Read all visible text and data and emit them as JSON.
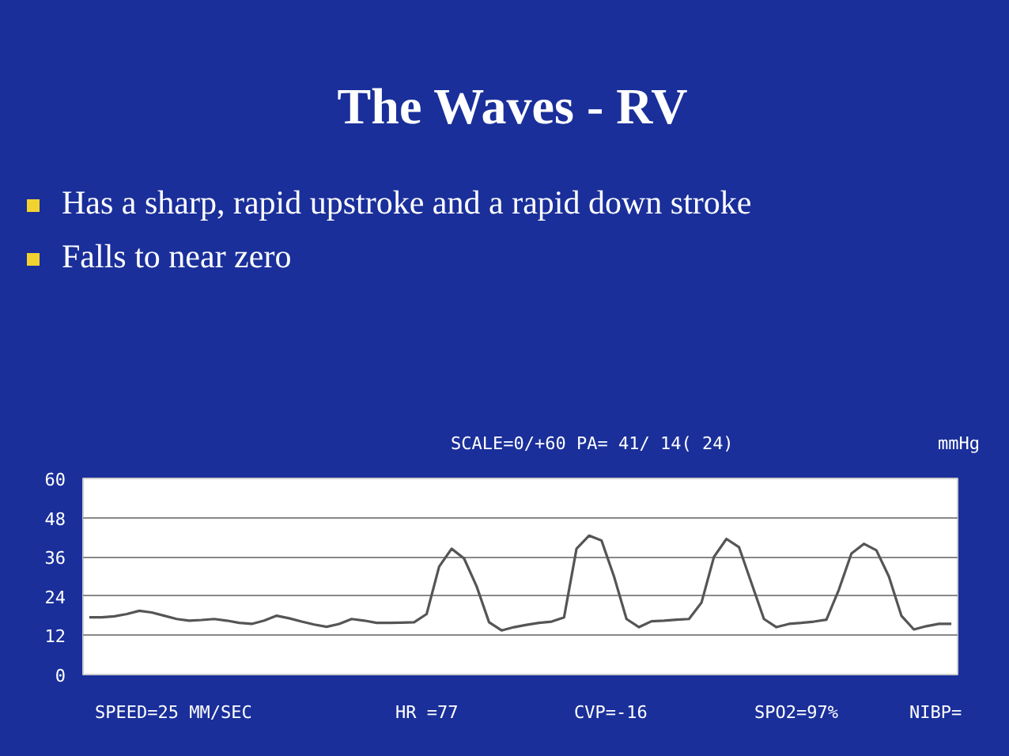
{
  "chart_data": {
    "type": "line",
    "title": "The Waves - RV",
    "annotations": [
      "Has a sharp, rapid upstroke and a rapid down stroke",
      "Falls to near zero",
      "SCALE=0/+60 PA= 41/ 14( 24)",
      "mmHg",
      "SPEED=25 MM/SEC",
      "HR =77",
      "CVP=-16",
      "SPO2=97%",
      "NIBP="
    ],
    "categories": [
      null,
      null,
      null,
      null,
      null,
      null,
      null,
      null,
      null,
      null,
      null,
      null,
      null,
      null,
      null,
      null,
      null,
      null,
      null,
      null,
      null,
      null,
      null,
      null,
      null,
      null,
      null,
      null,
      null,
      null,
      null,
      null,
      null,
      null,
      null,
      null,
      null,
      null,
      null,
      null,
      null,
      null,
      null,
      null,
      null,
      null,
      null,
      null,
      null,
      null,
      null,
      null,
      null,
      null,
      null,
      null,
      null,
      null,
      null,
      null,
      null,
      null,
      null,
      null,
      null,
      null,
      null,
      null,
      null,
      null
    ],
    "series": [
      {
        "color": "#555555",
        "values": [
          17.5,
          17.5,
          17.8,
          18.5,
          19.5,
          19,
          18,
          17,
          16.5,
          16.7,
          17,
          16.5,
          15.8,
          15.5,
          16.5,
          18,
          17.2,
          16.2,
          15.3,
          14.6,
          15.5,
          17,
          16.5,
          15.8,
          15.8,
          15.9,
          16,
          18.5,
          33,
          38.5,
          35.5,
          27,
          16,
          13.5,
          14.5,
          15.2,
          15.8,
          16.2,
          17.5,
          38.5,
          42.5,
          41,
          30,
          17,
          14.5,
          16.3,
          16.5,
          16.8,
          17,
          22,
          36,
          41.5,
          39,
          28,
          17,
          14.5,
          15.5,
          15.8,
          16.2,
          16.8,
          26,
          37,
          40,
          38,
          30,
          18,
          13.8,
          14.8,
          15.5,
          15.5
        ]
      }
    ],
    "ylim": [
      0,
      60
    ],
    "yticks": [
      0,
      12,
      24,
      36,
      48,
      60
    ],
    "grid": "y",
    "tick_labels": "y"
  }
}
